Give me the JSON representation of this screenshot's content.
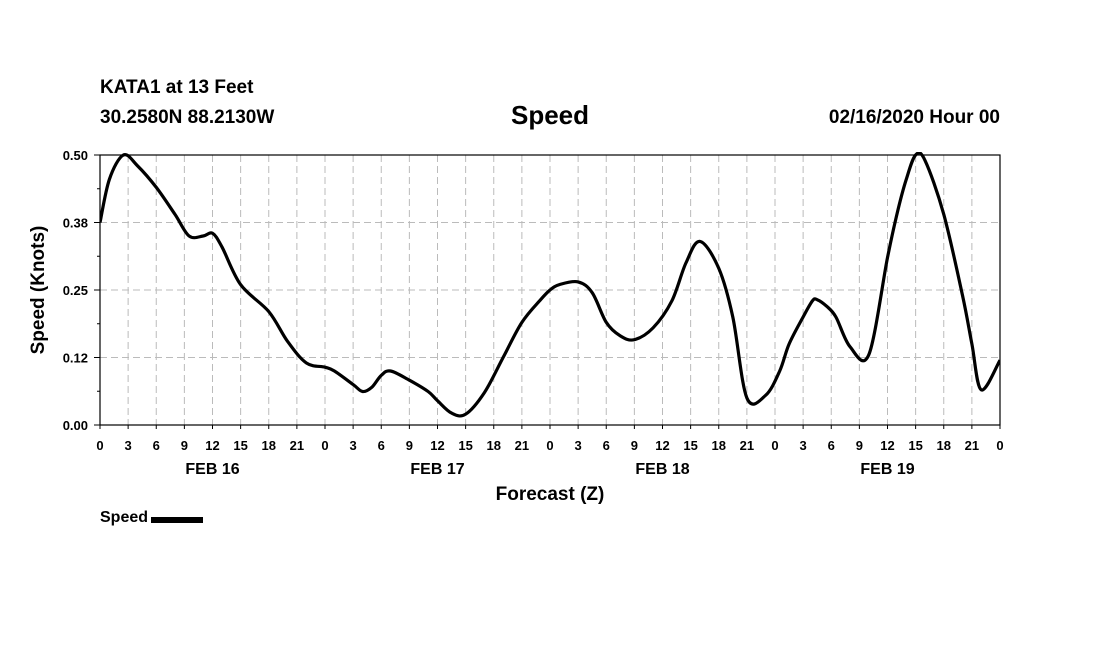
{
  "header": {
    "station": "KATA1 at 13 Feet",
    "coords": "30.2580N 88.2130W",
    "title": "Speed",
    "forecast_time": "02/16/2020 Hour 00"
  },
  "legend": {
    "label": "Speed"
  },
  "colors": {
    "line": "#000000",
    "grid": "#bbbbbb",
    "background": "#ffffff"
  },
  "chart_data": {
    "type": "line",
    "title": "Speed",
    "xlabel": "Forecast (Z)",
    "ylabel": "Speed (Knots)",
    "xlim": [
      0,
      96
    ],
    "ylim": [
      0,
      0.5
    ],
    "y_ticks": [
      0.0,
      0.125,
      0.25,
      0.375,
      0.5
    ],
    "y_tick_labels": [
      "0.00",
      "0.12",
      "0.25",
      "0.38",
      "0.50"
    ],
    "x_ticks": [
      0,
      3,
      6,
      9,
      12,
      15,
      18,
      21,
      24,
      27,
      30,
      33,
      36,
      39,
      42,
      45,
      48,
      51,
      54,
      57,
      60,
      63,
      66,
      69,
      72,
      75,
      78,
      81,
      84,
      87,
      90,
      93,
      96
    ],
    "x_tick_labels": [
      "0",
      "3",
      "6",
      "9",
      "12",
      "15",
      "18",
      "21",
      "0",
      "3",
      "6",
      "9",
      "12",
      "15",
      "18",
      "21",
      "0",
      "3",
      "6",
      "9",
      "12",
      "15",
      "18",
      "21",
      "0",
      "3",
      "6",
      "9",
      "12",
      "15",
      "18",
      "21",
      "0"
    ],
    "day_labels": [
      {
        "x": 12,
        "label": "FEB 16"
      },
      {
        "x": 36,
        "label": "FEB 17"
      },
      {
        "x": 60,
        "label": "FEB 18"
      },
      {
        "x": 84,
        "label": "FEB 19"
      }
    ],
    "grid": true,
    "series": [
      {
        "name": "Speed",
        "x": [
          0,
          1,
          2.5,
          4,
          6,
          8,
          9.5,
          11,
          12,
          13,
          15,
          18,
          20,
          22,
          24,
          25,
          27,
          28,
          29,
          30,
          31,
          33,
          35,
          36,
          37.5,
          39,
          41,
          43,
          45,
          47,
          48,
          49,
          51,
          52.5,
          54,
          55.5,
          57,
          59,
          61,
          62.5,
          64,
          66,
          67.5,
          69,
          71,
          72.5,
          73.5,
          75,
          76,
          76.5,
          77.5,
          78.5,
          80,
          82,
          84,
          85,
          86,
          87,
          88,
          90,
          92,
          93,
          94,
          96
        ],
        "y": [
          0.375,
          0.455,
          0.5,
          0.48,
          0.44,
          0.39,
          0.35,
          0.35,
          0.355,
          0.33,
          0.26,
          0.21,
          0.155,
          0.115,
          0.107,
          0.1,
          0.075,
          0.062,
          0.07,
          0.092,
          0.1,
          0.083,
          0.062,
          0.045,
          0.022,
          0.02,
          0.06,
          0.125,
          0.19,
          0.232,
          0.25,
          0.26,
          0.265,
          0.245,
          0.19,
          0.165,
          0.158,
          0.18,
          0.23,
          0.3,
          0.34,
          0.29,
          0.2,
          0.05,
          0.055,
          0.1,
          0.15,
          0.2,
          0.23,
          0.232,
          0.22,
          0.2,
          0.145,
          0.13,
          0.31,
          0.39,
          0.455,
          0.5,
          0.49,
          0.39,
          0.24,
          0.15,
          0.065,
          0.12
        ]
      }
    ]
  }
}
